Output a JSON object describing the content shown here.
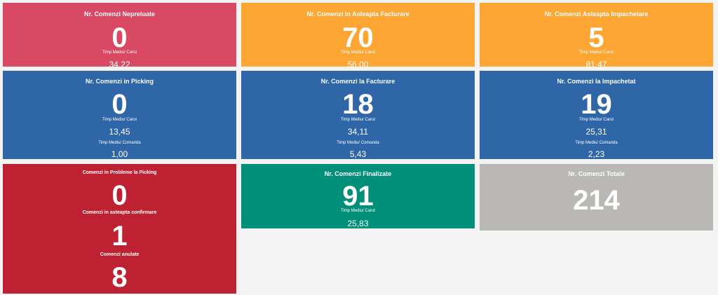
{
  "colors": {
    "page_background": "#f3f3f3",
    "pink": "#d94964",
    "orange": "#fda634",
    "blue": "#2f66a7",
    "red": "#be2232",
    "teal": "#00907a",
    "gray": "#b9b8b4"
  },
  "tiles": {
    "nepreluate": {
      "title": "Nr. Comenzi Nepreluate",
      "count": "0",
      "avg_label": "Timp Mediu/ Carut",
      "avg_value": "34,22"
    },
    "asteapta_facturare": {
      "title": "Nr. Comenzi in Asteapta Facturare",
      "count": "70",
      "avg_label": "Timp Mediu/ Carut",
      "avg_value": "56,00"
    },
    "asteapta_impachetare": {
      "title": "Nr. Comenzi Asteapta Impachetare",
      "count": "5",
      "avg_label": "Timp Mediu/ Carut",
      "avg_value": "81,47"
    },
    "picking": {
      "title": "Nr. Comenzi in Picking",
      "count": "0",
      "avg_label": "Timp Mediu/ Carut",
      "avg_value": "13,45",
      "avg2_label": "Timp Mediu/ Comanda",
      "avg2_value": "1,00"
    },
    "la_facturare": {
      "title": "Nr. Comenzi la Facturare",
      "count": "18",
      "avg_label": "Timp Mediu/ Carut",
      "avg_value": "34,11",
      "avg2_label": "Timp Mediu/ Comanda",
      "avg2_value": "5,43"
    },
    "la_impachetat": {
      "title": "Nr. Comenzi la Impachetat",
      "count": "19",
      "avg_label": "Timp Mediu/ Carut",
      "avg_value": "25,31",
      "avg2_label": "Timp Mediu/ Comanda",
      "avg2_value": "2,23"
    },
    "probleme": {
      "title_probleme": "Comenzi in Probleme la Picking",
      "count_probleme": "0",
      "title_confirmare": "Comenzi in asteapta confirmare",
      "count_confirmare": "1",
      "title_anulate": "Comenzi anulate",
      "count_anulate": "8"
    },
    "finalizate": {
      "title": "Nr. Comenzi Finalizate",
      "count": "91",
      "avg_label": "Timp Mediu/ Carut",
      "avg_value": "25,83"
    },
    "totale": {
      "title": "Nr. Comenzi Totale",
      "count": "214"
    }
  }
}
